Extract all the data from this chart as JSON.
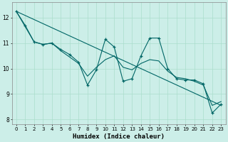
{
  "xlabel": "Humidex (Indice chaleur)",
  "bg_color": "#cceee8",
  "line_color": "#006666",
  "grid_color": "#aaddcc",
  "xlim": [
    -0.5,
    23.5
  ],
  "ylim": [
    7.8,
    12.6
  ],
  "yticks": [
    8,
    9,
    10,
    11,
    12
  ],
  "xticks": [
    0,
    1,
    2,
    3,
    4,
    5,
    6,
    7,
    8,
    9,
    10,
    11,
    12,
    13,
    14,
    15,
    16,
    17,
    18,
    19,
    20,
    21,
    22,
    23
  ],
  "line1_x": [
    0,
    1,
    2,
    3,
    4,
    5,
    6,
    7,
    8,
    9,
    10,
    11,
    12,
    13,
    14,
    15,
    16,
    17,
    18,
    19,
    20,
    21,
    22,
    23
  ],
  "line1_y": [
    12.25,
    11.7,
    11.05,
    10.95,
    11.0,
    10.75,
    10.55,
    10.25,
    9.35,
    9.95,
    11.15,
    10.85,
    9.5,
    9.6,
    10.5,
    11.2,
    11.2,
    10.0,
    9.6,
    9.55,
    9.55,
    9.4,
    8.25,
    8.6
  ],
  "line2_x": [
    0,
    23
  ],
  "line2_y": [
    12.25,
    8.55
  ],
  "line3_x": [
    0,
    2,
    3,
    4,
    5,
    6,
    7,
    8,
    9,
    10,
    11,
    12,
    13,
    14,
    15,
    16,
    17,
    18,
    19,
    20,
    21,
    22,
    23
  ],
  "line3_y": [
    12.25,
    11.05,
    10.95,
    11.0,
    10.7,
    10.45,
    10.2,
    9.7,
    10.05,
    10.35,
    10.5,
    10.05,
    9.95,
    10.2,
    10.35,
    10.3,
    9.9,
    9.65,
    9.6,
    9.5,
    9.35,
    8.55,
    8.7
  ]
}
